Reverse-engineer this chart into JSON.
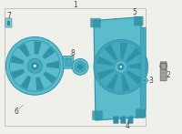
{
  "bg_color": "#f0f0eb",
  "border_color": "#aaaaaa",
  "fan_color": "#5bbccc",
  "fan_color_dark": "#2e8fa5",
  "fan_color_mid": "#45aabf",
  "text_color": "#444444",
  "label_1": "1",
  "label_2": "2",
  "label_3": "3",
  "label_4": "4",
  "label_5": "5",
  "label_6": "6",
  "label_7": "7",
  "label_8": "8",
  "figsize": [
    2.0,
    1.47
  ],
  "dpi": 100
}
